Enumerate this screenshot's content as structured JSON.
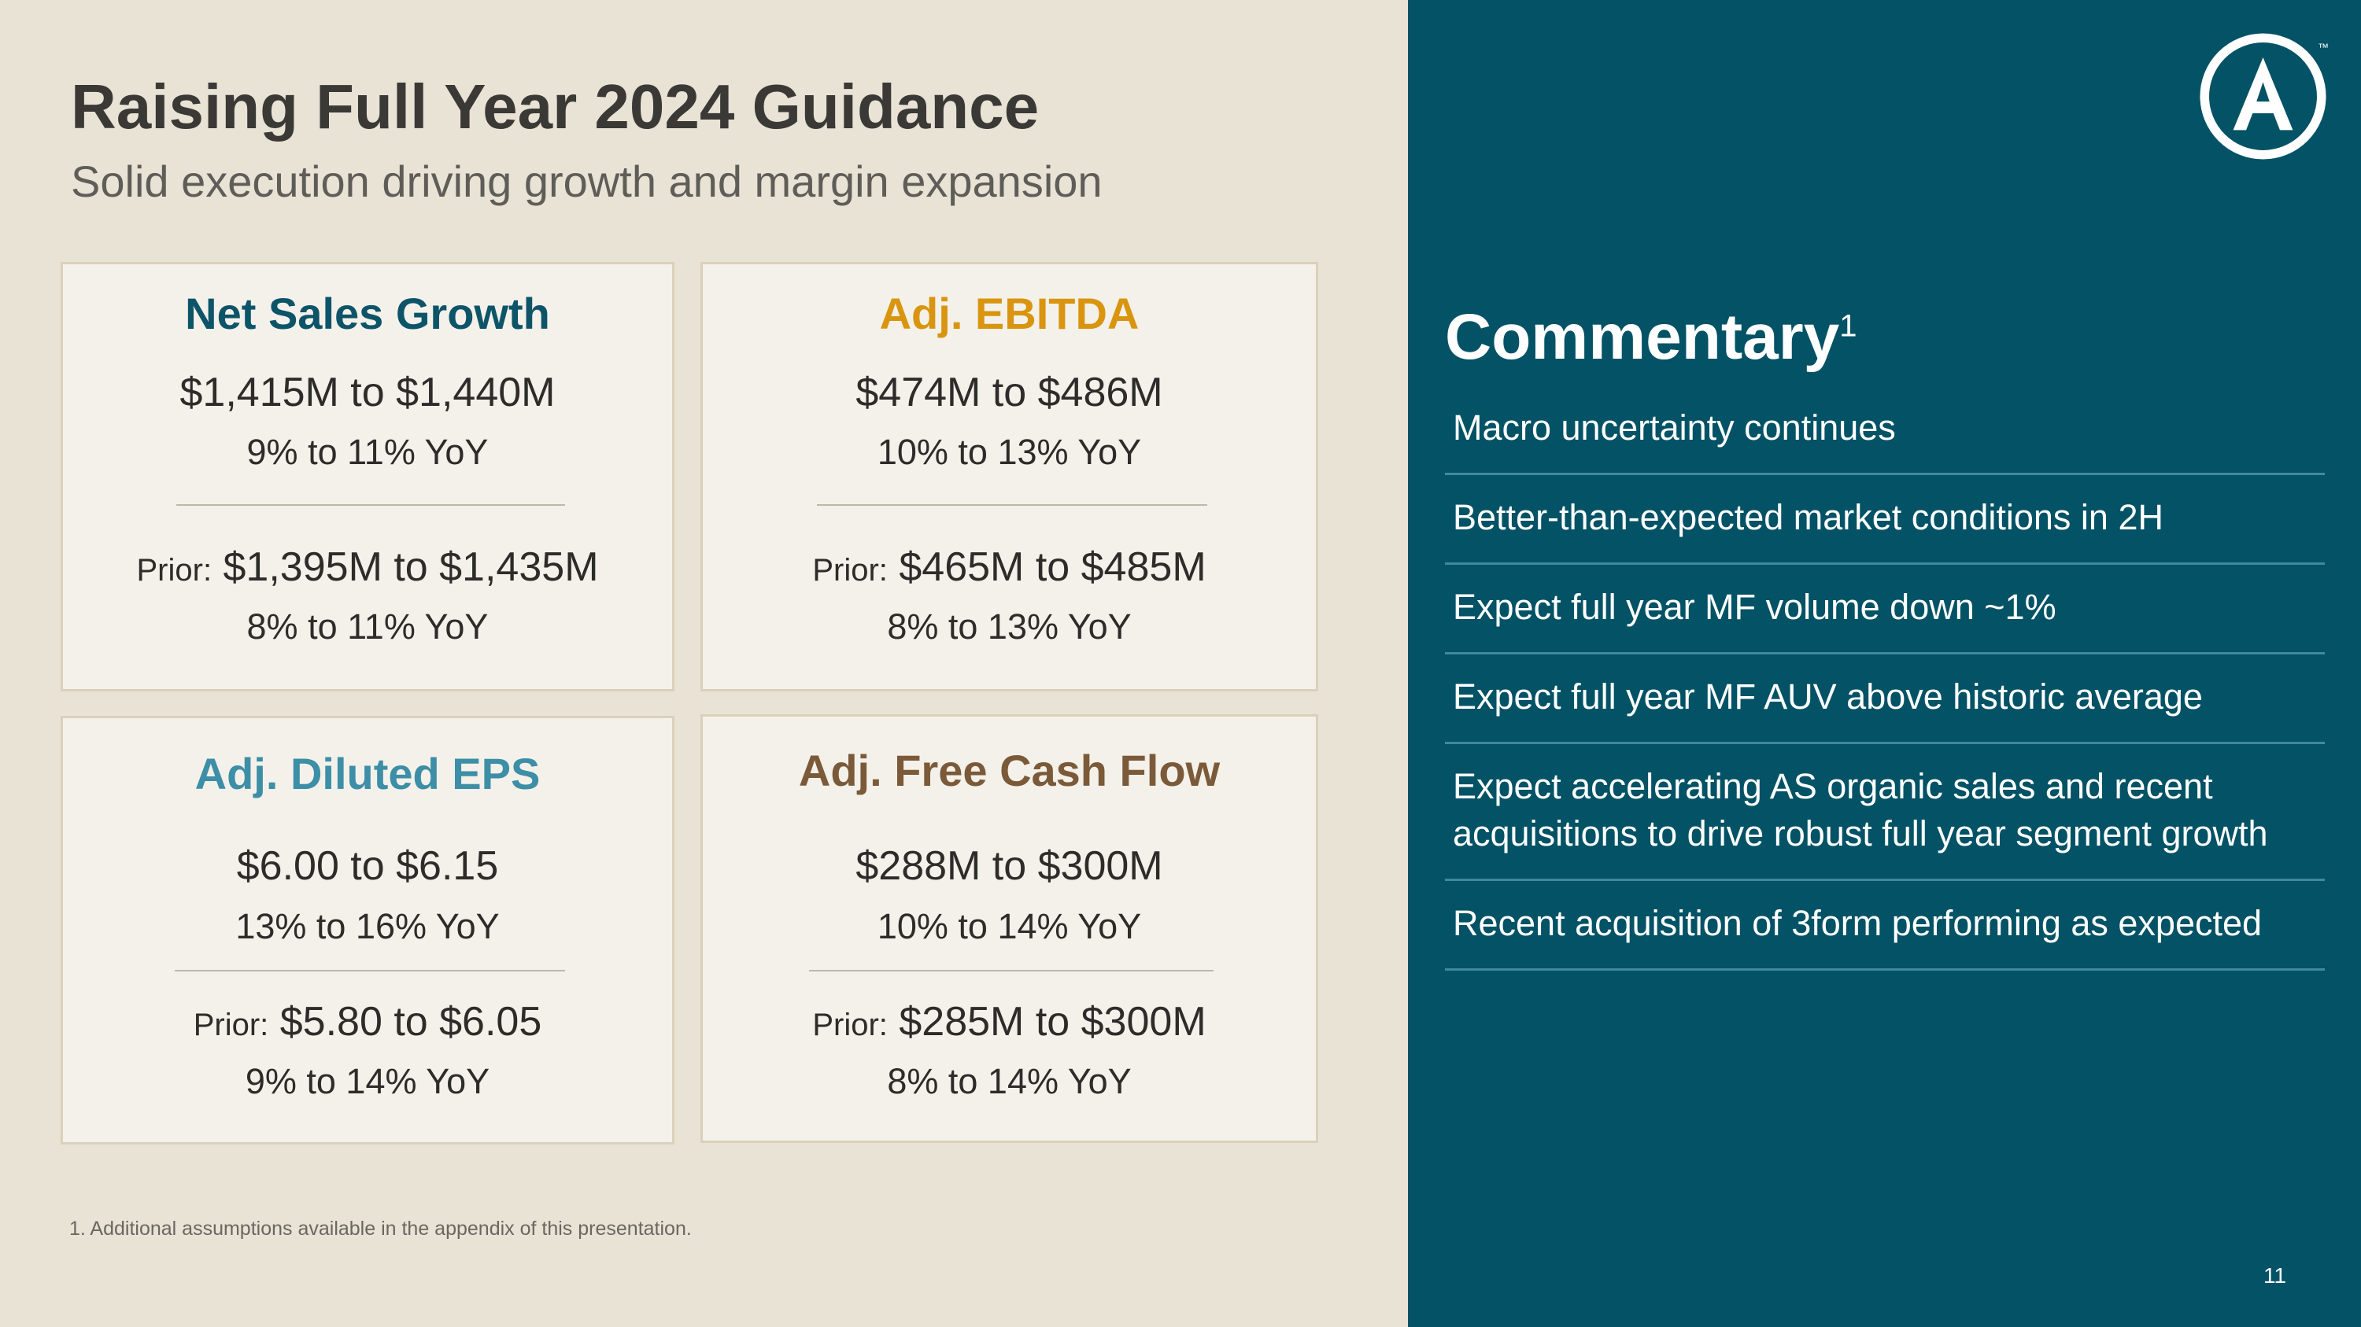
{
  "title": "Raising Full Year 2024 Guidance",
  "subtitle": "Solid execution driving growth and margin expansion",
  "colors": {
    "net_sales": "#0d5469",
    "ebitda": "#d9950f",
    "eps": "#3d8ea7",
    "fcf": "#7a5a39",
    "panel": "#035265"
  },
  "cards": {
    "net_sales": {
      "title": "Net Sales Growth",
      "range": "$1,415M to $1,440M",
      "yoy": "9% to 11% YoY",
      "prior_label": "Prior:",
      "prior_range": "$1,395M to $1,435M",
      "prior_yoy": "8% to 11% YoY"
    },
    "ebitda": {
      "title": "Adj. EBITDA",
      "range": "$474M to $486M",
      "yoy": "10% to 13% YoY",
      "prior_label": "Prior:",
      "prior_range": "$465M to $485M",
      "prior_yoy": "8% to 13% YoY"
    },
    "eps": {
      "title": "Adj. Diluted EPS",
      "range": "$6.00 to $6.15",
      "yoy": "13% to 16% YoY",
      "prior_label": "Prior:",
      "prior_range": "$5.80 to $6.05",
      "prior_yoy": "9% to 14% YoY"
    },
    "fcf": {
      "title": "Adj. Free Cash Flow",
      "range": "$288M to $300M",
      "yoy": "10% to 14% YoY",
      "prior_label": "Prior:",
      "prior_range": "$285M to $300M",
      "prior_yoy": "8% to 14% YoY"
    }
  },
  "footnote": "1. Additional assumptions available in the appendix of this presentation.",
  "commentary": {
    "title": "Commentary",
    "superscript": "1",
    "items": [
      "Macro uncertainty continues",
      "Better-than-expected market conditions in 2H",
      "Expect full year MF volume down ~1%",
      "Expect full year MF AUV above historic average",
      "Expect accelerating AS organic sales and recent acquisitions to drive robust full year segment growth",
      "Recent acquisition of 3form performing as expected"
    ]
  },
  "logo_icon": "a-circle-logo-icon",
  "trademark": "™",
  "page_number": "11"
}
